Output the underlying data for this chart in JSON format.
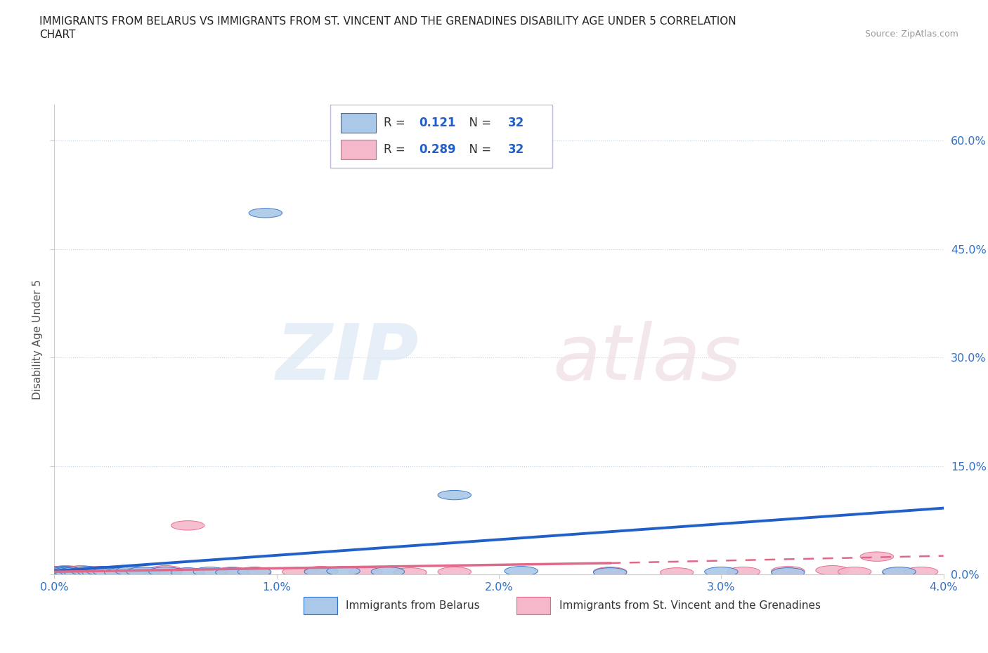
{
  "title_line1": "IMMIGRANTS FROM BELARUS VS IMMIGRANTS FROM ST. VINCENT AND THE GRENADINES DISABILITY AGE UNDER 5 CORRELATION",
  "title_line2": "CHART",
  "source": "Source: ZipAtlas.com",
  "ylabel": "Disability Age Under 5",
  "r_belarus": "0.121",
  "n_belarus": "32",
  "r_svg": "0.289",
  "n_svg": "32",
  "xlim": [
    0.0,
    0.04
  ],
  "ylim": [
    0.0,
    0.65
  ],
  "yticks": [
    0.0,
    0.15,
    0.3,
    0.45,
    0.6
  ],
  "ytick_labels": [
    "0.0%",
    "15.0%",
    "30.0%",
    "45.0%",
    "60.0%"
  ],
  "xticks": [
    0.0,
    0.01,
    0.02,
    0.03,
    0.04
  ],
  "xtick_labels": [
    "0.0%",
    "1.0%",
    "2.0%",
    "3.0%",
    "4.0%"
  ],
  "color_belarus_fill": "#aac8e8",
  "color_svg_fill": "#f5b8cb",
  "color_belarus_edge": "#3070c8",
  "color_svg_edge": "#e06888",
  "color_belarus_line": "#2060c8",
  "color_svg_line": "#e06888",
  "legend_label_belarus": "Immigrants from Belarus",
  "legend_label_svg": "Immigrants from St. Vincent and the Grenadines",
  "belarus_x": [
    0.0002,
    0.0003,
    0.0004,
    0.0005,
    0.0006,
    0.0007,
    0.0008,
    0.001,
    0.0012,
    0.0015,
    0.0018,
    0.002,
    0.0022,
    0.0025,
    0.003,
    0.0035,
    0.004,
    0.005,
    0.006,
    0.007,
    0.008,
    0.009,
    0.0095,
    0.012,
    0.013,
    0.015,
    0.018,
    0.021,
    0.025,
    0.03,
    0.033,
    0.038
  ],
  "belarus_y": [
    0.004,
    0.003,
    0.005,
    0.004,
    0.003,
    0.004,
    0.003,
    0.004,
    0.003,
    0.005,
    0.004,
    0.003,
    0.005,
    0.004,
    0.003,
    0.005,
    0.004,
    0.004,
    0.003,
    0.004,
    0.003,
    0.004,
    0.5,
    0.004,
    0.005,
    0.004,
    0.11,
    0.005,
    0.003,
    0.004,
    0.003,
    0.004
  ],
  "svg_x": [
    0.0002,
    0.0003,
    0.0004,
    0.0005,
    0.0006,
    0.0007,
    0.0008,
    0.001,
    0.0012,
    0.0015,
    0.002,
    0.0025,
    0.003,
    0.004,
    0.005,
    0.006,
    0.008,
    0.009,
    0.011,
    0.012,
    0.014,
    0.016,
    0.018,
    0.025,
    0.028,
    0.031,
    0.033,
    0.035,
    0.036,
    0.037,
    0.038,
    0.039
  ],
  "svg_y": [
    0.005,
    0.004,
    0.003,
    0.006,
    0.004,
    0.003,
    0.005,
    0.004,
    0.006,
    0.003,
    0.005,
    0.004,
    0.005,
    0.003,
    0.006,
    0.068,
    0.004,
    0.003,
    0.004,
    0.005,
    0.004,
    0.003,
    0.004,
    0.004,
    0.003,
    0.004,
    0.005,
    0.006,
    0.004,
    0.025,
    0.003,
    0.004
  ],
  "bline_x0": 0.0,
  "bline_x1": 0.04,
  "bline_y0": 0.005,
  "bline_y1": 0.092,
  "sline_solid_x0": 0.0,
  "sline_solid_x1": 0.025,
  "sline_solid_y0": 0.004,
  "sline_solid_y1": 0.016,
  "sline_dash_x0": 0.025,
  "sline_dash_x1": 0.04,
  "sline_dash_y0": 0.016,
  "sline_dash_y1": 0.026
}
